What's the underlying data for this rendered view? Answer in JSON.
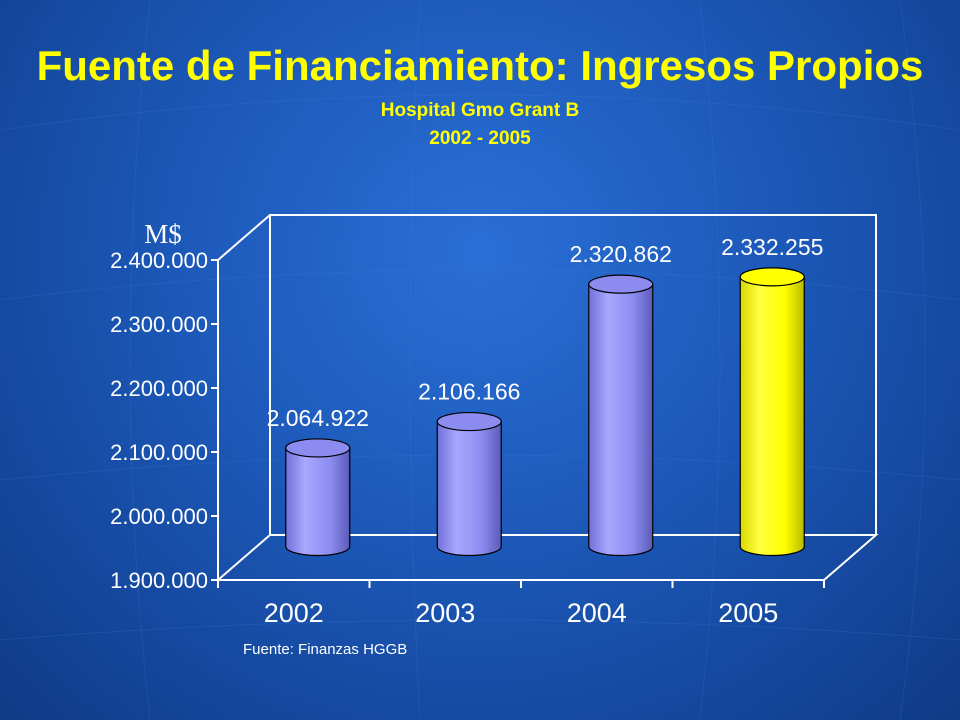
{
  "title": "Fuente de Financiamiento: Ingresos Propios",
  "subtitle_line1": "Hospital Gmo Grant B",
  "subtitle_line2": "2002 - 2005",
  "source": "Fuente: Finanzas HGGB",
  "colors": {
    "background": "#1c58b8",
    "title": "#ffff00",
    "bar_default": "#8c8cf0",
    "bar_highlight": "#ffff00",
    "axis": "#ffffff"
  },
  "chart_data": {
    "type": "bar",
    "style": "3d-cylinder",
    "title": "",
    "xlabel": "",
    "ylabel": "M$",
    "categories": [
      "2002",
      "2003",
      "2004",
      "2005"
    ],
    "values": [
      2064922,
      2106166,
      2320862,
      2332255
    ],
    "data_labels": [
      "2.064.922",
      "2.106.166",
      "2.320.862",
      "2.332.255"
    ],
    "highlight_index": 3,
    "ylim": [
      1900000,
      2400000
    ],
    "yticks": [
      1900000,
      2000000,
      2100000,
      2200000,
      2300000,
      2400000
    ],
    "ytick_labels": [
      "1.900.000",
      "2.000.000",
      "2.100.000",
      "2.200.000",
      "2.300.000",
      "2.400.000"
    ],
    "grid": false,
    "legend": "none"
  }
}
